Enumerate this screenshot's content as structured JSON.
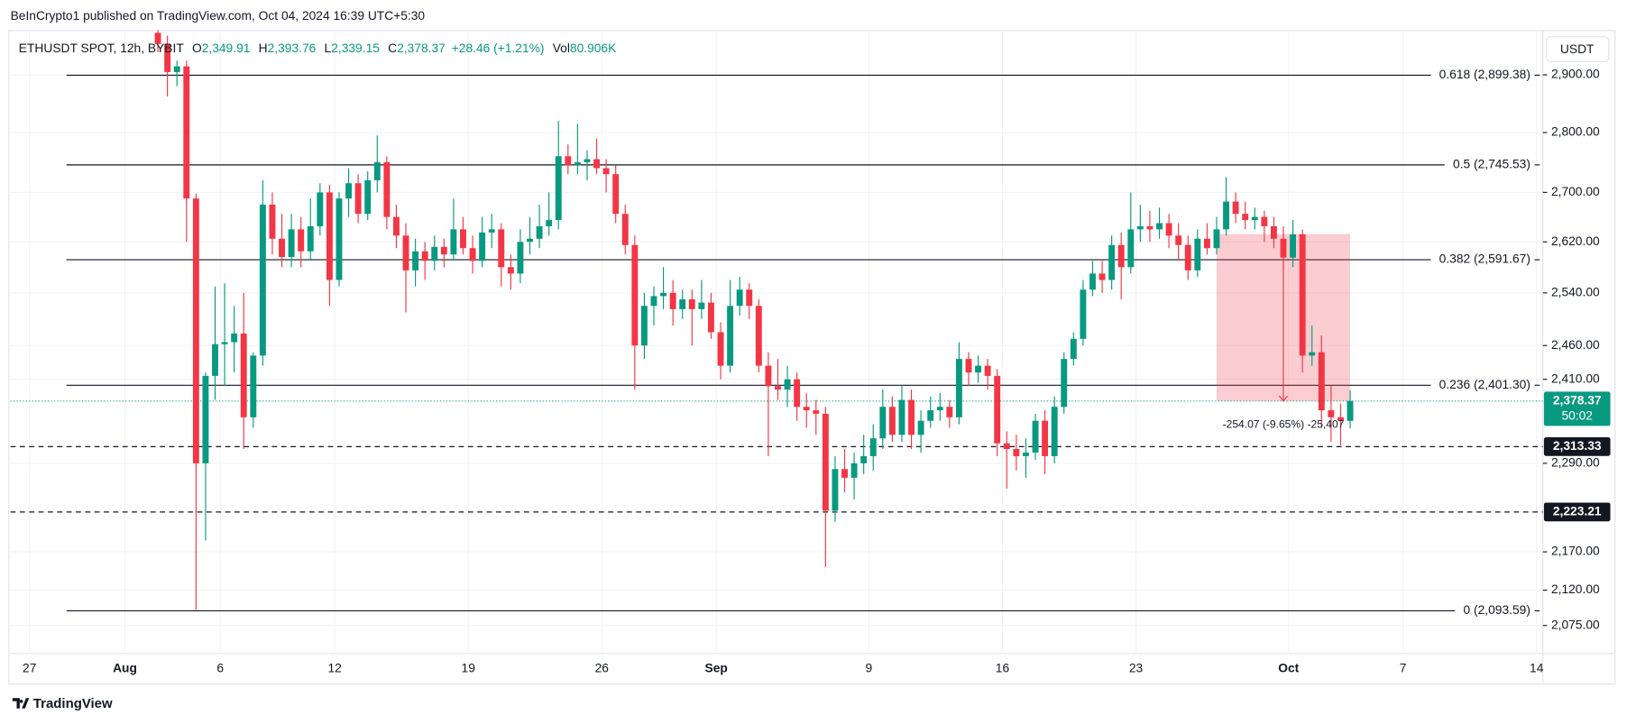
{
  "header": {
    "published": "BeInCrypto1 published on TradingView.com, Oct 04, 2024 16:39 UTC+5:30"
  },
  "footer": {
    "brand": "TradingView"
  },
  "chart_data": {
    "type": "candlestick",
    "currency": "USDT",
    "legend": {
      "symbol": "ETHUSDT SPOT, 12h, BYBIT",
      "items": [
        {
          "key": "O",
          "value": "2,349.91"
        },
        {
          "key": "H",
          "value": "2,393.76"
        },
        {
          "key": "L",
          "value": "2,339.15"
        },
        {
          "key": "C",
          "value": "2,378.37"
        }
      ],
      "change": "+28.46 (+1.21%)",
      "volume_key": "Vol",
      "volume": "80.906K",
      "color": "#089981"
    },
    "up_color": "#089981",
    "down_color": "#f23645",
    "log_scale": true,
    "grid": true,
    "xlim": [
      "2024-07-26T00:00",
      "2024-10-14T08:00"
    ],
    "xticks": [
      {
        "value": "2024-07-27T00:00",
        "label": "27"
      },
      {
        "value": "2024-08-01T00:00",
        "label": "Aug"
      },
      {
        "value": "2024-08-06T00:00",
        "label": "6"
      },
      {
        "value": "2024-08-12T00:00",
        "label": "12"
      },
      {
        "value": "2024-08-19T00:00",
        "label": "19"
      },
      {
        "value": "2024-08-26T00:00",
        "label": "26"
      },
      {
        "value": "2024-09-01T00:00",
        "label": "Sep"
      },
      {
        "value": "2024-09-09T00:00",
        "label": "9"
      },
      {
        "value": "2024-09-16T00:00",
        "label": "16"
      },
      {
        "value": "2024-09-23T00:00",
        "label": "23"
      },
      {
        "value": "2024-10-01T00:00",
        "label": "Oct"
      },
      {
        "value": "2024-10-07T00:00",
        "label": "7"
      },
      {
        "value": "2024-10-14T00:00",
        "label": "14"
      }
    ],
    "ylim": [
      2040,
      2980
    ],
    "yticks": [
      {
        "value": 2075,
        "label": "2,075.00"
      },
      {
        "value": 2120,
        "label": "2,120.00"
      },
      {
        "value": 2170,
        "label": "2,170.00"
      },
      {
        "value": 2290,
        "label": "2,290.00"
      },
      {
        "value": 2410,
        "label": "2,410.00"
      },
      {
        "value": 2460,
        "label": "2,460.00"
      },
      {
        "value": 2540,
        "label": "2,540.00"
      },
      {
        "value": 2620,
        "label": "2,620.00"
      },
      {
        "value": 2700,
        "label": "2,700.00"
      },
      {
        "value": 2800,
        "label": "2,800.00"
      },
      {
        "value": 2900,
        "label": "2,900.00"
      }
    ],
    "x": [
      "2024-08-02T17:30",
      "2024-08-03T05:30",
      "2024-08-03T17:30",
      "2024-08-04T05:30",
      "2024-08-04T17:30",
      "2024-08-05T05:30",
      "2024-08-05T17:30",
      "2024-08-06T05:30",
      "2024-08-06T17:30",
      "2024-08-07T05:30",
      "2024-08-07T17:30",
      "2024-08-08T05:30",
      "2024-08-08T17:30",
      "2024-08-09T05:30",
      "2024-08-09T17:30",
      "2024-08-10T05:30",
      "2024-08-10T17:30",
      "2024-08-11T05:30",
      "2024-08-11T17:30",
      "2024-08-12T05:30",
      "2024-08-12T17:30",
      "2024-08-13T05:30",
      "2024-08-13T17:30",
      "2024-08-14T05:30",
      "2024-08-14T17:30",
      "2024-08-15T05:30",
      "2024-08-15T17:30",
      "2024-08-16T05:30",
      "2024-08-16T17:30",
      "2024-08-17T05:30",
      "2024-08-17T17:30",
      "2024-08-18T05:30",
      "2024-08-18T17:30",
      "2024-08-19T05:30",
      "2024-08-19T17:30",
      "2024-08-20T05:30",
      "2024-08-20T17:30",
      "2024-08-21T05:30",
      "2024-08-21T17:30",
      "2024-08-22T05:30",
      "2024-08-22T17:30",
      "2024-08-23T05:30",
      "2024-08-23T17:30",
      "2024-08-24T05:30",
      "2024-08-24T17:30",
      "2024-08-25T05:30",
      "2024-08-25T17:30",
      "2024-08-26T05:30",
      "2024-08-26T17:30",
      "2024-08-27T05:30",
      "2024-08-27T17:30",
      "2024-08-28T05:30",
      "2024-08-28T17:30",
      "2024-08-29T05:30",
      "2024-08-29T17:30",
      "2024-08-30T05:30",
      "2024-08-30T17:30",
      "2024-08-31T05:30",
      "2024-08-31T17:30",
      "2024-09-01T05:30",
      "2024-09-01T17:30",
      "2024-09-02T05:30",
      "2024-09-02T17:30",
      "2024-09-03T05:30",
      "2024-09-03T17:30",
      "2024-09-04T05:30",
      "2024-09-04T17:30",
      "2024-09-05T05:30",
      "2024-09-05T17:30",
      "2024-09-06T05:30",
      "2024-09-06T17:30",
      "2024-09-07T05:30",
      "2024-09-07T17:30",
      "2024-09-08T05:30",
      "2024-09-08T17:30",
      "2024-09-09T05:30",
      "2024-09-09T17:30",
      "2024-09-10T05:30",
      "2024-09-10T17:30",
      "2024-09-11T05:30",
      "2024-09-11T17:30",
      "2024-09-12T05:30",
      "2024-09-12T17:30",
      "2024-09-13T05:30",
      "2024-09-13T17:30",
      "2024-09-14T05:30",
      "2024-09-14T17:30",
      "2024-09-15T05:30",
      "2024-09-15T17:30",
      "2024-09-16T05:30",
      "2024-09-16T17:30",
      "2024-09-17T05:30",
      "2024-09-17T17:30",
      "2024-09-18T05:30",
      "2024-09-18T17:30",
      "2024-09-19T05:30",
      "2024-09-19T17:30",
      "2024-09-20T05:30",
      "2024-09-20T17:30",
      "2024-09-21T05:30",
      "2024-09-21T17:30",
      "2024-09-22T05:30",
      "2024-09-22T17:30",
      "2024-09-23T05:30",
      "2024-09-23T17:30",
      "2024-09-24T05:30",
      "2024-09-24T17:30",
      "2024-09-25T05:30",
      "2024-09-25T17:30",
      "2024-09-26T05:30",
      "2024-09-26T17:30",
      "2024-09-27T05:30",
      "2024-09-27T17:30",
      "2024-09-28T05:30",
      "2024-09-28T17:30",
      "2024-09-29T05:30",
      "2024-09-29T17:30",
      "2024-09-30T05:30",
      "2024-09-30T17:30",
      "2024-10-01T05:30",
      "2024-10-01T17:30",
      "2024-10-02T05:30",
      "2024-10-02T17:30",
      "2024-10-03T05:30",
      "2024-10-03T17:30",
      "2024-10-04T05:30"
    ],
    "open": [
      2975,
      2955,
      2905,
      2915,
      2690,
      2290,
      2415,
      2462,
      2465,
      2478,
      2355,
      2445,
      2680,
      2625,
      2596,
      2640,
      2605,
      2645,
      2700,
      2560,
      2690,
      2715,
      2665,
      2720,
      2750,
      2660,
      2630,
      2575,
      2605,
      2590,
      2612,
      2600,
      2640,
      2610,
      2590,
      2635,
      2640,
      2580,
      2570,
      2620,
      2625,
      2645,
      2655,
      2760,
      2745,
      2750,
      2755,
      2740,
      2730,
      2665,
      2615,
      2460,
      2520,
      2535,
      2540,
      2515,
      2530,
      2515,
      2525,
      2480,
      2430,
      2520,
      2545,
      2520,
      2430,
      2400,
      2395,
      2410,
      2370,
      2365,
      2360,
      2225,
      2282,
      2270,
      2290,
      2300,
      2325,
      2370,
      2330,
      2380,
      2330,
      2350,
      2365,
      2370,
      2355,
      2440,
      2420,
      2430,
      2415,
      2318,
      2310,
      2300,
      2305,
      2350,
      2300,
      2370,
      2440,
      2470,
      2545,
      2570,
      2560,
      2615,
      2580,
      2640,
      2645,
      2640,
      2650,
      2630,
      2615,
      2575,
      2625,
      2610,
      2640,
      2685,
      2665,
      2655,
      2660,
      2645,
      2625,
      2595,
      2632,
      2445,
      2450,
      2365,
      2355,
      2349.91
    ],
    "high": [
      2990,
      2970,
      2925,
      2925,
      2698,
      2420,
      2550,
      2555,
      2520,
      2540,
      2450,
      2720,
      2700,
      2665,
      2665,
      2660,
      2690,
      2715,
      2712,
      2700,
      2740,
      2730,
      2735,
      2795,
      2760,
      2680,
      2650,
      2625,
      2620,
      2630,
      2625,
      2690,
      2660,
      2630,
      2660,
      2665,
      2650,
      2600,
      2640,
      2660,
      2680,
      2700,
      2820,
      2780,
      2815,
      2770,
      2790,
      2755,
      2745,
      2680,
      2630,
      2540,
      2550,
      2580,
      2560,
      2545,
      2545,
      2560,
      2540,
      2495,
      2560,
      2565,
      2555,
      2530,
      2450,
      2440,
      2430,
      2420,
      2390,
      2380,
      2370,
      2300,
      2310,
      2305,
      2330,
      2345,
      2395,
      2385,
      2400,
      2395,
      2365,
      2385,
      2390,
      2380,
      2465,
      2450,
      2445,
      2440,
      2425,
      2335,
      2330,
      2325,
      2360,
      2365,
      2385,
      2450,
      2480,
      2560,
      2590,
      2590,
      2630,
      2635,
      2700,
      2680,
      2670,
      2675,
      2665,
      2650,
      2630,
      2640,
      2650,
      2660,
      2725,
      2700,
      2685,
      2675,
      2670,
      2660,
      2645,
      2655,
      2640,
      2490,
      2475,
      2400,
      2375,
      2393.76
    ],
    "low": [
      2940,
      2862,
      2880,
      2620,
      2095,
      2185,
      2380,
      2400,
      2420,
      2310,
      2340,
      2430,
      2600,
      2580,
      2580,
      2580,
      2590,
      2630,
      2520,
      2550,
      2660,
      2650,
      2655,
      2700,
      2640,
      2610,
      2510,
      2550,
      2560,
      2575,
      2580,
      2590,
      2600,
      2570,
      2580,
      2610,
      2550,
      2545,
      2555,
      2600,
      2610,
      2630,
      2640,
      2730,
      2730,
      2720,
      2730,
      2700,
      2650,
      2600,
      2395,
      2440,
      2490,
      2515,
      2490,
      2500,
      2460,
      2500,
      2470,
      2410,
      2420,
      2505,
      2500,
      2420,
      2300,
      2380,
      2370,
      2350,
      2340,
      2330,
      2150,
      2210,
      2250,
      2240,
      2275,
      2280,
      2310,
      2320,
      2320,
      2310,
      2305,
      2340,
      2350,
      2340,
      2345,
      2400,
      2405,
      2395,
      2300,
      2255,
      2280,
      2270,
      2295,
      2275,
      2290,
      2360,
      2430,
      2460,
      2535,
      2540,
      2545,
      2530,
      2570,
      2620,
      2620,
      2625,
      2610,
      2590,
      2560,
      2565,
      2600,
      2600,
      2630,
      2650,
      2640,
      2640,
      2620,
      2610,
      2575,
      2580,
      2420,
      2430,
      2340,
      2320,
      2315,
      2339.15
    ],
    "close": [
      2955,
      2905,
      2915,
      2690,
      2290,
      2415,
      2462,
      2465,
      2478,
      2355,
      2445,
      2680,
      2625,
      2596,
      2640,
      2605,
      2645,
      2700,
      2560,
      2690,
      2715,
      2665,
      2720,
      2750,
      2660,
      2630,
      2575,
      2605,
      2590,
      2612,
      2600,
      2640,
      2610,
      2590,
      2635,
      2640,
      2580,
      2570,
      2620,
      2625,
      2645,
      2655,
      2760,
      2745,
      2750,
      2755,
      2740,
      2730,
      2665,
      2615,
      2460,
      2520,
      2535,
      2540,
      2515,
      2530,
      2515,
      2525,
      2480,
      2430,
      2520,
      2545,
      2520,
      2430,
      2400,
      2395,
      2410,
      2370,
      2365,
      2360,
      2225,
      2282,
      2270,
      2290,
      2300,
      2325,
      2370,
      2330,
      2380,
      2330,
      2350,
      2365,
      2370,
      2355,
      2440,
      2420,
      2430,
      2415,
      2318,
      2310,
      2300,
      2305,
      2350,
      2300,
      2370,
      2440,
      2470,
      2545,
      2570,
      2560,
      2615,
      2580,
      2640,
      2645,
      2640,
      2650,
      2630,
      2615,
      2575,
      2625,
      2610,
      2640,
      2685,
      2665,
      2655,
      2660,
      2645,
      2625,
      2595,
      2632,
      2445,
      2450,
      2365,
      2355,
      2349.91,
      2378.37
    ],
    "fib_levels": [
      {
        "value": 2899.38,
        "label": "0.618 (2,899.38)"
      },
      {
        "value": 2745.53,
        "label": "0.5 (2,745.53)"
      },
      {
        "value": 2591.67,
        "label": "0.382 (2,591.67)"
      },
      {
        "value": 2401.3,
        "label": "0.236 (2,401.30)"
      },
      {
        "value": 2093.59,
        "label": "0 (2,093.59)"
      }
    ],
    "horizontal_levels": [
      {
        "value": 2313.33,
        "label": "2,313.33"
      },
      {
        "value": 2223.21,
        "label": "2,223.21"
      }
    ],
    "last_price": {
      "value": 2378.37,
      "label": "2,378.37",
      "countdown": "50:02",
      "color": "#089981"
    },
    "measure": {
      "x": [
        "2024-09-27T05:30",
        "2024-10-04T05:30"
      ],
      "from": 2632.44,
      "to": 2378.37,
      "label": "-254.07 (-9.65%) -25,407",
      "color": "#f23645"
    }
  }
}
